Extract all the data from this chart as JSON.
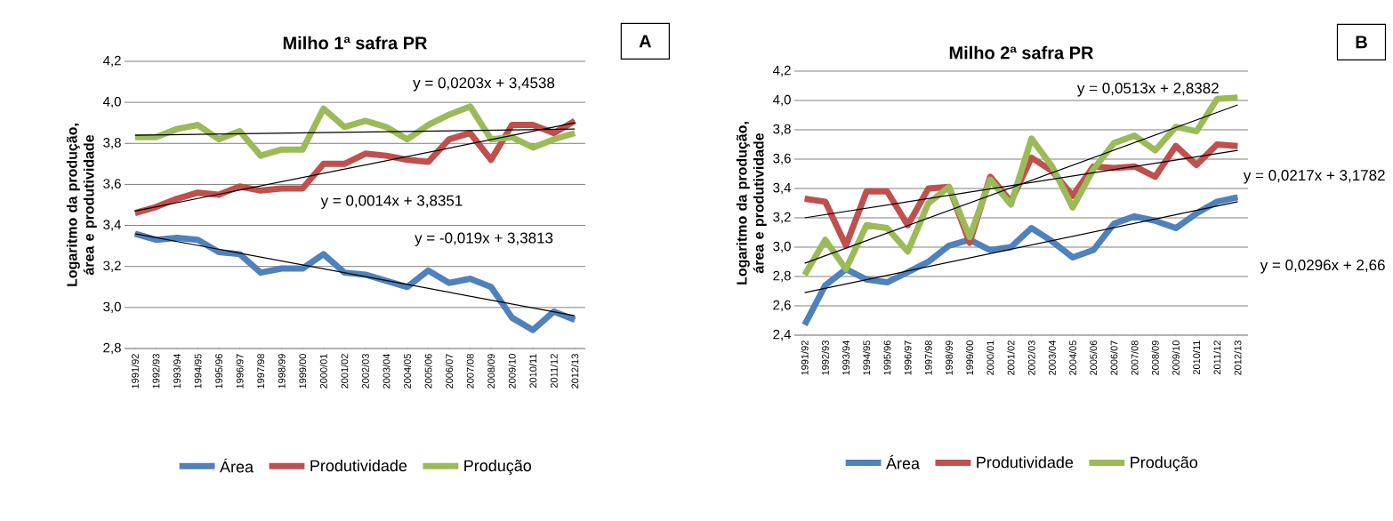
{
  "chart_data": [
    {
      "type": "line",
      "title": "Milho 1ª safra PR",
      "ylabel": "Logaritmo da produção, área e produtividade",
      "categories": [
        "1991/92",
        "1992/93",
        "1993/94",
        "1994/95",
        "1995/96",
        "1996/97",
        "1997/98",
        "1998/99",
        "1999/00",
        "2000/01",
        "2001/02",
        "2002/03",
        "2003/04",
        "2004/05",
        "2005/06",
        "2006/07",
        "2007/08",
        "2008/09",
        "2009/10",
        "2010/11",
        "2011/12",
        "2012/13"
      ],
      "series": [
        {
          "name": "Área",
          "color": "#4f81bd",
          "values": [
            3.36,
            3.33,
            3.34,
            3.33,
            3.27,
            3.26,
            3.17,
            3.19,
            3.19,
            3.26,
            3.17,
            3.16,
            3.13,
            3.1,
            3.18,
            3.12,
            3.14,
            3.1,
            2.95,
            2.89,
            2.98,
            2.94
          ]
        },
        {
          "name": "Produtividade",
          "color": "#c0504d",
          "values": [
            3.46,
            3.49,
            3.53,
            3.56,
            3.55,
            3.59,
            3.57,
            3.58,
            3.58,
            3.7,
            3.7,
            3.75,
            3.74,
            3.72,
            3.71,
            3.82,
            3.85,
            3.72,
            3.89,
            3.89,
            3.85,
            3.91
          ]
        },
        {
          "name": "Produção",
          "color": "#9bbb59",
          "values": [
            3.83,
            3.83,
            3.87,
            3.89,
            3.82,
            3.86,
            3.74,
            3.77,
            3.77,
            3.97,
            3.88,
            3.91,
            3.88,
            3.82,
            3.89,
            3.94,
            3.98,
            3.82,
            3.83,
            3.78,
            3.82,
            3.85
          ]
        },
        {
          "type": "line",
          "color": "#000000",
          "x": [
            "1991/92",
            "2012/13"
          ],
          "values": [
            3.36,
            2.96
          ]
        },
        {
          "type": "line",
          "color": "#000000",
          "x": [
            "1991/92",
            "2012/13"
          ],
          "values": [
            3.47,
            3.9
          ]
        },
        {
          "type": "line",
          "color": "#000000",
          "x": [
            "1991/92",
            "2012/13"
          ],
          "values": [
            3.84,
            3.87
          ]
        }
      ],
      "ylim": [
        2.8,
        4.2
      ],
      "yticks": [
        {
          "value": 2.8,
          "label": "2,8"
        },
        {
          "value": 3.0,
          "label": "3,0"
        },
        {
          "value": 3.2,
          "label": "3,2"
        },
        {
          "value": 3.4,
          "label": "3,4"
        },
        {
          "value": 3.6,
          "label": "3,6"
        },
        {
          "value": 3.8,
          "label": "3,8"
        },
        {
          "value": 4.0,
          "label": "4,0"
        },
        {
          "value": 4.2,
          "label": "4,2"
        }
      ],
      "grid": "y",
      "legend": "bottom",
      "annotations": [
        "A",
        "y = 0,0203x + 3,4538",
        "y = 0,0014x + 3,8351",
        "y = -0,019x + 3,3813"
      ]
    },
    {
      "type": "line",
      "title": "Milho 2ª safra PR",
      "ylabel": "Logaritmo da produção, área e produtividade",
      "categories": [
        "1991/92",
        "1992/93",
        "1993/94",
        "1994/95",
        "1995/96",
        "1996/97",
        "1997/98",
        "1998/99",
        "1999/00",
        "2000/01",
        "2001/02",
        "2002/03",
        "2003/04",
        "2004/05",
        "2005/06",
        "2006/07",
        "2007/08",
        "2008/09",
        "2009/10",
        "2010/11",
        "2011/12",
        "2012/13"
      ],
      "series": [
        {
          "name": "Área",
          "color": "#4f81bd",
          "values": [
            2.47,
            2.74,
            2.85,
            2.78,
            2.76,
            2.83,
            2.9,
            3.01,
            3.05,
            2.98,
            3.0,
            3.13,
            3.04,
            2.93,
            2.98,
            3.16,
            3.21,
            3.18,
            3.13,
            3.23,
            3.31,
            3.34
          ]
        },
        {
          "name": "Produtividade",
          "color": "#c0504d",
          "values": [
            3.33,
            3.31,
            3.01,
            3.38,
            3.38,
            3.15,
            3.4,
            3.41,
            3.03,
            3.48,
            3.31,
            3.61,
            3.52,
            3.35,
            3.55,
            3.54,
            3.55,
            3.48,
            3.69,
            3.56,
            3.7,
            3.69
          ]
        },
        {
          "name": "Produção",
          "color": "#9bbb59",
          "values": [
            2.81,
            3.05,
            2.85,
            3.15,
            3.13,
            2.97,
            3.3,
            3.41,
            3.07,
            3.46,
            3.29,
            3.74,
            3.55,
            3.27,
            3.53,
            3.71,
            3.76,
            3.66,
            3.82,
            3.79,
            4.01,
            4.02
          ]
        },
        {
          "type": "line",
          "color": "#000000",
          "x": [
            "1991/92",
            "2012/13"
          ],
          "values": [
            2.69,
            3.31
          ]
        },
        {
          "type": "line",
          "color": "#000000",
          "x": [
            "1991/92",
            "2012/13"
          ],
          "values": [
            3.2,
            3.66
          ]
        },
        {
          "type": "line",
          "color": "#000000",
          "x": [
            "1991/92",
            "2012/13"
          ],
          "values": [
            2.89,
            3.97
          ]
        }
      ],
      "ylim": [
        2.4,
        4.2
      ],
      "yticks": [
        {
          "value": 2.4,
          "label": "2,4"
        },
        {
          "value": 2.6,
          "label": "2,6"
        },
        {
          "value": 2.8,
          "label": "2,8"
        },
        {
          "value": 3.0,
          "label": "3,0"
        },
        {
          "value": 3.2,
          "label": "3,2"
        },
        {
          "value": 3.4,
          "label": "3,4"
        },
        {
          "value": 3.6,
          "label": "3,6"
        },
        {
          "value": 3.8,
          "label": "3,8"
        },
        {
          "value": 4.0,
          "label": "4,0"
        },
        {
          "value": 4.2,
          "label": "4,2"
        }
      ],
      "grid": "y",
      "legend": "bottom",
      "annotations": [
        "B",
        "y = 0,0513x + 2,8382",
        "y = 0,0217x + 3,1782",
        "y = 0,0296x + 2,66"
      ]
    }
  ]
}
